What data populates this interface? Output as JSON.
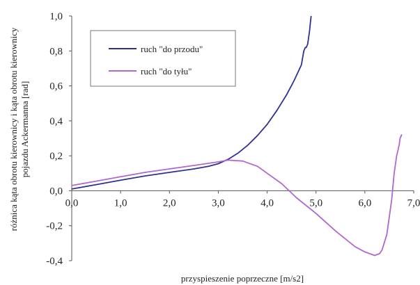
{
  "chart_data": {
    "type": "line",
    "xlabel": "przyspieszenie poprzeczne [m/s2]",
    "ylabel_lines": [
      "różnica kąta obrotu kierownicy i kąta obrotu kierownicy",
      "pojazdu Ackermanna [rad]"
    ],
    "xlim": [
      0,
      7
    ],
    "ylim": [
      -0.4,
      1.0
    ],
    "x_ticks": [
      0,
      1,
      2,
      3,
      4,
      5,
      6,
      7
    ],
    "x_tick_labels": [
      "0,0",
      "1,0",
      "2,0",
      "3,0",
      "4,0",
      "5,0",
      "6,0",
      "7,0"
    ],
    "y_ticks": [
      1.0,
      0.8,
      0.6,
      0.4,
      0.2,
      0.0,
      -0.2,
      -0.4
    ],
    "y_tick_labels": [
      "1,0",
      "0,8",
      "0,6",
      "0,4",
      "0,2",
      "0,0",
      "-0,2",
      "-0,4"
    ],
    "grid": false,
    "legend_position": "top-left",
    "series": [
      {
        "name": "ruch \"do przodu\"",
        "color": "#2e3192",
        "points": [
          [
            0.0,
            0.01
          ],
          [
            0.5,
            0.035
          ],
          [
            1.0,
            0.06
          ],
          [
            1.5,
            0.085
          ],
          [
            2.0,
            0.105
          ],
          [
            2.5,
            0.125
          ],
          [
            2.8,
            0.14
          ],
          [
            3.0,
            0.155
          ],
          [
            3.2,
            0.18
          ],
          [
            3.4,
            0.215
          ],
          [
            3.6,
            0.26
          ],
          [
            3.8,
            0.315
          ],
          [
            4.0,
            0.38
          ],
          [
            4.2,
            0.46
          ],
          [
            4.4,
            0.55
          ],
          [
            4.55,
            0.63
          ],
          [
            4.7,
            0.72
          ],
          [
            4.75,
            0.8
          ],
          [
            4.78,
            0.82
          ],
          [
            4.8,
            0.82
          ],
          [
            4.83,
            0.84
          ],
          [
            4.85,
            0.88
          ],
          [
            4.87,
            0.92
          ],
          [
            4.88,
            0.95
          ],
          [
            4.9,
            1.0
          ]
        ]
      },
      {
        "name": "ruch \"do tyłu\"",
        "color": "#b266d0",
        "points": [
          [
            0.0,
            0.03
          ],
          [
            0.5,
            0.055
          ],
          [
            1.0,
            0.08
          ],
          [
            1.5,
            0.105
          ],
          [
            2.0,
            0.125
          ],
          [
            2.5,
            0.145
          ],
          [
            3.0,
            0.165
          ],
          [
            3.2,
            0.175
          ],
          [
            3.5,
            0.17
          ],
          [
            3.8,
            0.14
          ],
          [
            4.0,
            0.1
          ],
          [
            4.3,
            0.04
          ],
          [
            4.6,
            -0.04
          ],
          [
            5.0,
            -0.13
          ],
          [
            5.4,
            -0.23
          ],
          [
            5.8,
            -0.32
          ],
          [
            6.0,
            -0.35
          ],
          [
            6.2,
            -0.37
          ],
          [
            6.3,
            -0.36
          ],
          [
            6.35,
            -0.34
          ],
          [
            6.45,
            -0.25
          ],
          [
            6.55,
            -0.05
          ],
          [
            6.6,
            0.1
          ],
          [
            6.65,
            0.2
          ],
          [
            6.7,
            0.26
          ],
          [
            6.72,
            0.3
          ],
          [
            6.75,
            0.32
          ],
          [
            6.74,
            0.31
          ]
        ]
      }
    ]
  }
}
